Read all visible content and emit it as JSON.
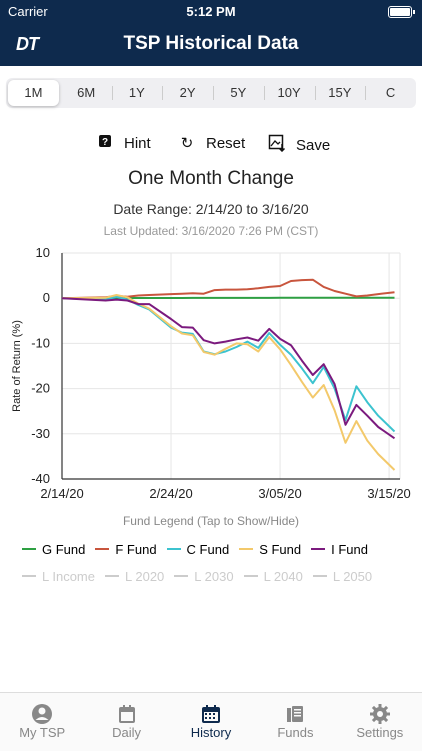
{
  "status": {
    "carrier": "Carrier",
    "time": "5:12 PM"
  },
  "header": {
    "logo": "DT",
    "title": "TSP Historical Data"
  },
  "tabs": [
    "1M",
    "6M",
    "1Y",
    "2Y",
    "5Y",
    "10Y",
    "15Y",
    "C"
  ],
  "selected_tab": "1M",
  "actions": {
    "hint": "Hint",
    "reset": "Reset",
    "save": "Save"
  },
  "chart_title": "One Month Change",
  "date_range": "Date Range: 2/14/20 to 3/16/20",
  "last_updated": "Last Updated: 3/16/2020 7:26 PM (CST)",
  "legend_title": "Fund Legend (Tap to Show/Hide)",
  "legend_active": [
    {
      "name": "G Fund",
      "color": "#2ea043"
    },
    {
      "name": "F Fund",
      "color": "#c8553d"
    },
    {
      "name": "C Fund",
      "color": "#3cc3cf"
    },
    {
      "name": "S Fund",
      "color": "#f3c96b"
    },
    {
      "name": "I Fund",
      "color": "#7b1a7e"
    }
  ],
  "legend_inactive": [
    "L Income",
    "L 2020",
    "L 2030",
    "L 2040",
    "L 2050"
  ],
  "chart_data": {
    "type": "line",
    "ylabel": "Rate of Return (%)",
    "ylim": [
      -40,
      10
    ],
    "yticks": [
      10,
      0,
      -10,
      -20,
      -30,
      -40
    ],
    "xticks": [
      {
        "label": "2/14/20",
        "day": 0
      },
      {
        "label": "2/24/20",
        "day": 10
      },
      {
        "label": "3/05/20",
        "day": 20
      },
      {
        "label": "3/15/20",
        "day": 30
      }
    ],
    "xlim": [
      0,
      31
    ],
    "x": [
      0,
      4,
      5,
      6,
      7,
      8,
      10,
      11,
      12,
      13,
      14,
      15,
      16,
      17,
      18,
      19,
      20,
      21,
      22,
      23,
      24,
      25,
      26,
      27,
      28,
      29,
      30.5
    ],
    "series": [
      {
        "name": "G Fund",
        "color": "#2ea043",
        "values": [
          0,
          0,
          0,
          0.05,
          0.05,
          0.05,
          0.05,
          0.05,
          0.06,
          0.06,
          0.06,
          0.06,
          0.06,
          0.07,
          0.07,
          0.07,
          0.08,
          0.08,
          0.08,
          0.08,
          0.08,
          0.09,
          0.09,
          0.09,
          0.09,
          0.09,
          0.1
        ]
      },
      {
        "name": "F Fund",
        "color": "#c8553d",
        "values": [
          0,
          0.2,
          0.5,
          0.3,
          0.6,
          0.7,
          0.9,
          1.0,
          1.1,
          1.0,
          1.8,
          1.9,
          1.9,
          2.0,
          2.2,
          2.5,
          2.7,
          3.8,
          4.0,
          4.1,
          2.5,
          1.6,
          1.0,
          0.4,
          0.6,
          0.9,
          1.3
        ]
      },
      {
        "name": "C Fund",
        "color": "#3cc3cf",
        "values": [
          0,
          -0.3,
          0.3,
          -0.3,
          -1.5,
          -2.5,
          -6.5,
          -7.6,
          -7.9,
          -11.8,
          -12.4,
          -11.8,
          -10.8,
          -9.6,
          -11,
          -7.7,
          -10.3,
          -12.5,
          -15.5,
          -18.8,
          -15.2,
          -20,
          -27,
          -19.5,
          -23,
          -26,
          -29.5
        ]
      },
      {
        "name": "S Fund",
        "color": "#f3c96b",
        "values": [
          0,
          0.1,
          0.7,
          0.2,
          -1.2,
          -2.3,
          -6.2,
          -7.8,
          -8.2,
          -11.9,
          -12.5,
          -11.2,
          -10.0,
          -10.2,
          -11.8,
          -8.6,
          -11.3,
          -14.8,
          -18.5,
          -22,
          -19.2,
          -24.8,
          -32,
          -27.2,
          -31.5,
          -34.5,
          -38
        ]
      },
      {
        "name": "I Fund",
        "color": "#7b1a7e",
        "values": [
          0,
          -0.5,
          -0.3,
          -0.5,
          -1.3,
          -1.3,
          -4.6,
          -6.4,
          -6.5,
          -9.3,
          -10,
          -9.6,
          -9.1,
          -8.7,
          -9.4,
          -6.8,
          -9,
          -10.4,
          -13.8,
          -17,
          -14.6,
          -19,
          -28,
          -23.6,
          -26,
          -28.5,
          -31
        ]
      }
    ]
  },
  "nav": [
    {
      "label": "My TSP",
      "icon": "person-circle-icon"
    },
    {
      "label": "Daily",
      "icon": "calendar-icon"
    },
    {
      "label": "History",
      "icon": "calendar-grid-icon"
    },
    {
      "label": "Funds",
      "icon": "books-icon"
    },
    {
      "label": "Settings",
      "icon": "gear-icon"
    }
  ],
  "selected_nav": "History"
}
